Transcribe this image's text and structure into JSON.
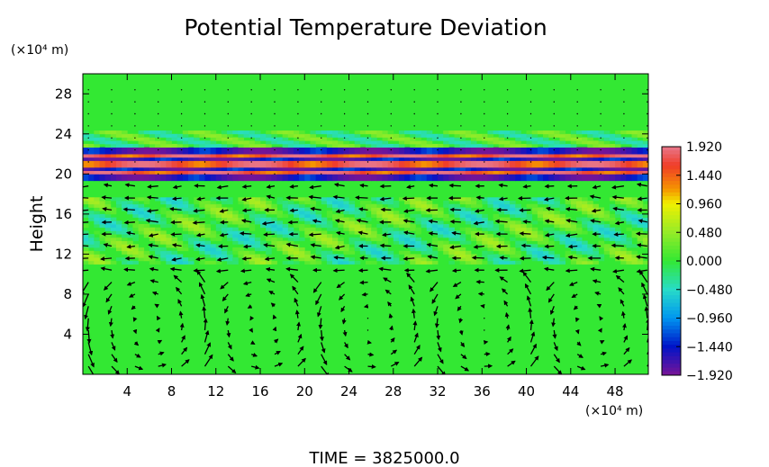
{
  "chart_data": {
    "type": "heatmap",
    "title": "Potential Temperature Deviation",
    "ylabel": "Height",
    "x_units": "(×10⁴ m)",
    "y_units": "(×10⁴ m)",
    "footer": "TIME  =  3825000.0",
    "x_range": [
      0,
      51
    ],
    "y_range": [
      0,
      30
    ],
    "x_ticks": [
      4,
      8,
      12,
      16,
      20,
      24,
      28,
      32,
      36,
      40,
      44,
      48
    ],
    "y_ticks": [
      4,
      8,
      12,
      16,
      20,
      24,
      28
    ],
    "colorbar": {
      "range": [
        -1.92,
        1.92
      ],
      "tick_labels": [
        "1.920",
        "1.440",
        "0.960",
        "0.480",
        "0.000",
        "−0.480",
        "−0.960",
        "−1.440",
        "−1.920"
      ],
      "tick_values": [
        1.92,
        1.44,
        0.96,
        0.48,
        0.0,
        -0.48,
        -0.96,
        -1.44,
        -1.92
      ]
    },
    "field_features": [
      {
        "description": "strong banded perturbation (tropopause layer)",
        "y": [
          19.5,
          22.5
        ],
        "amplitude": 1.9
      },
      {
        "description": "weaker band",
        "y": [
          22.5,
          24.5
        ],
        "amplitude": 0.5
      },
      {
        "description": "turbulent layer",
        "y": [
          11,
          17.5
        ],
        "amplitude": 0.5
      },
      {
        "description": "near zero (green) elsewhere",
        "y": [
          0,
          30
        ],
        "amplitude": 0.0
      }
    ],
    "grid": false,
    "legend": "colorbar-right"
  }
}
